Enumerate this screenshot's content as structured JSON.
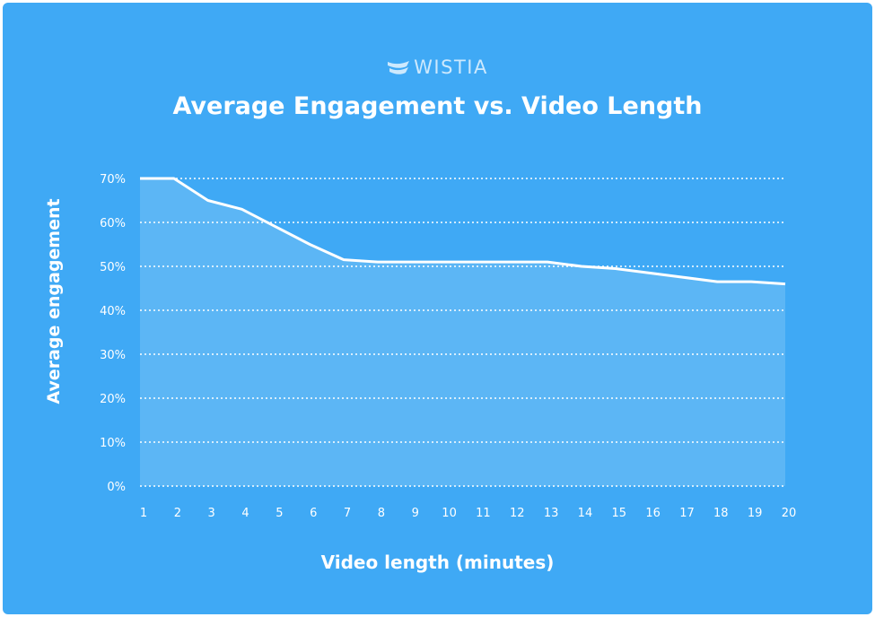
{
  "brand": {
    "name": "WISTIA",
    "icon": "wistia-logo-icon"
  },
  "colors": {
    "background": "#3fa9f5",
    "area_fill": "#5cb6f5",
    "line": "#ffffff",
    "grid": "#ffffff"
  },
  "chart_data": {
    "type": "area",
    "title": "Average Engagement vs. Video Length",
    "xlabel": "Video length (minutes)",
    "ylabel": "Average engagement",
    "x": [
      1,
      2,
      3,
      4,
      5,
      6,
      7,
      8,
      9,
      10,
      11,
      12,
      13,
      14,
      15,
      16,
      17,
      18,
      19,
      20
    ],
    "series": [
      {
        "values": [
          70,
          70,
          65,
          63,
          59,
          55,
          51.5,
          51,
          51,
          51,
          51,
          51,
          51,
          50,
          49.5,
          48.5,
          47.5,
          46.5,
          46.5,
          46
        ]
      }
    ],
    "ylim": [
      0,
      70
    ],
    "yticks": [
      0,
      10,
      20,
      30,
      40,
      50,
      60,
      70
    ],
    "ytick_labels": [
      "0%",
      "10%",
      "20%",
      "30%",
      "40%",
      "50%",
      "60%",
      "70%"
    ],
    "xtick_labels": [
      "1",
      "2",
      "3",
      "4",
      "5",
      "6",
      "7",
      "8",
      "9",
      "10",
      "11",
      "12",
      "13",
      "14",
      "15",
      "16",
      "17",
      "18",
      "19",
      "20"
    ],
    "grid": "horizontal-dotted",
    "legend": "none"
  }
}
